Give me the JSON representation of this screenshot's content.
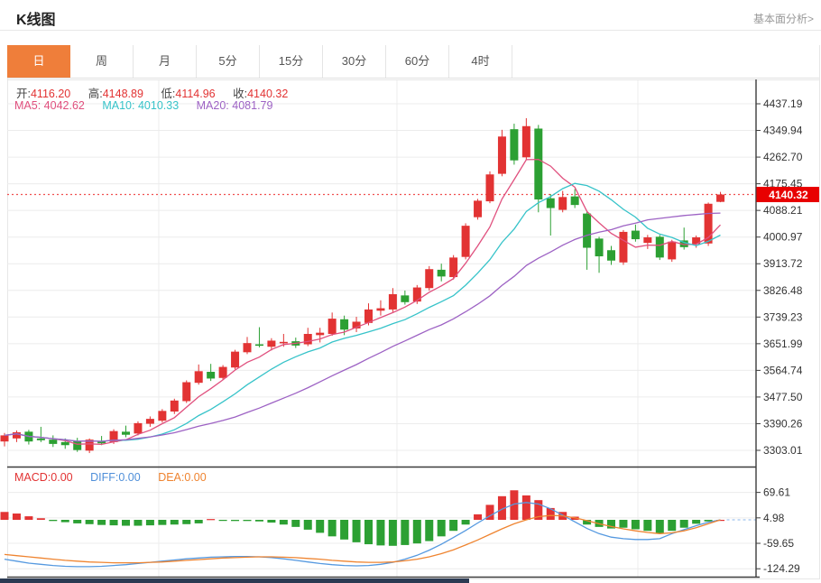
{
  "header": {
    "title": "K线图",
    "link": "基本面分析>"
  },
  "tabs": {
    "items": [
      {
        "label": "日",
        "active": true
      },
      {
        "label": "周",
        "active": false
      },
      {
        "label": "月",
        "active": false
      },
      {
        "label": "5分",
        "active": false
      },
      {
        "label": "15分",
        "active": false
      },
      {
        "label": "30分",
        "active": false
      },
      {
        "label": "60分",
        "active": false
      },
      {
        "label": "4时",
        "active": false
      }
    ]
  },
  "legend": {
    "ohlc": [
      {
        "label": "开:",
        "value": "4116.20"
      },
      {
        "label": "高:",
        "value": "4148.89"
      },
      {
        "label": "低:",
        "value": "4114.96"
      },
      {
        "label": "收:",
        "value": "4140.32"
      }
    ],
    "ma": [
      {
        "label": "MA5:",
        "value": "4042.62"
      },
      {
        "label": "MA10:",
        "value": "4010.33"
      },
      {
        "label": "MA20:",
        "value": "4081.79"
      }
    ],
    "macd": [
      {
        "label": "MACD:",
        "value": "0.00"
      },
      {
        "label": "DIFF:",
        "value": "0.00"
      },
      {
        "label": "DEA:",
        "value": "0.00"
      }
    ]
  },
  "colors": {
    "up": "#e23333",
    "down": "#2ca033",
    "ma5": "#e0507e",
    "ma10": "#36c3c9",
    "ma20": "#9d62c4",
    "diff": "#5599e0",
    "dea": "#ef8430",
    "grid": "#ececec",
    "axis": "#3c3c3c",
    "tick_text": "#333333",
    "price_line": "#f05050",
    "price_tag_bg": "#e80000",
    "price_tag_text": "#ffffff",
    "tab_active_bg": "#ef7e3a"
  },
  "chart_data": {
    "type": "candlestick+macd",
    "title": "K线图 (日)",
    "legend_position": "top-left",
    "grid": true,
    "y_axis_main": [
      "4437.19",
      "4349.94",
      "4262.70",
      "4175.45",
      "4088.21",
      "4000.97",
      "3913.72",
      "3826.48",
      "3739.23",
      "3651.99",
      "3564.74",
      "3477.50",
      "3390.26",
      "3303.01"
    ],
    "current_price": 4140.32,
    "current_price_label": "4140.32",
    "ohlc_legend": {
      "open": 4116.2,
      "high": 4148.89,
      "low": 4114.96,
      "close": 4140.32
    },
    "ma_legend": {
      "MA5": 4042.62,
      "MA10": 4010.33,
      "MA20": 4081.79
    },
    "ma_periods": [
      5,
      10,
      20
    ],
    "candles_ohlc": [
      [
        3332,
        3360,
        3316,
        3352
      ],
      [
        3342,
        3368,
        3330,
        3362
      ],
      [
        3364,
        3370,
        3322,
        3332
      ],
      [
        3342,
        3380,
        3330,
        3336
      ],
      [
        3338,
        3352,
        3314,
        3324
      ],
      [
        3330,
        3342,
        3308,
        3320
      ],
      [
        3334,
        3344,
        3298,
        3304
      ],
      [
        3302,
        3342,
        3294,
        3338
      ],
      [
        3334,
        3350,
        3320,
        3326
      ],
      [
        3330,
        3372,
        3324,
        3366
      ],
      [
        3364,
        3384,
        3346,
        3354
      ],
      [
        3358,
        3398,
        3352,
        3392
      ],
      [
        3390,
        3414,
        3380,
        3406
      ],
      [
        3400,
        3438,
        3394,
        3432
      ],
      [
        3430,
        3472,
        3422,
        3466
      ],
      [
        3464,
        3532,
        3458,
        3526
      ],
      [
        3524,
        3584,
        3518,
        3562
      ],
      [
        3560,
        3586,
        3530,
        3538
      ],
      [
        3540,
        3582,
        3534,
        3576
      ],
      [
        3574,
        3632,
        3568,
        3626
      ],
      [
        3624,
        3674,
        3618,
        3654
      ],
      [
        3650,
        3706,
        3640,
        3646
      ],
      [
        3642,
        3670,
        3630,
        3662
      ],
      [
        3654,
        3684,
        3642,
        3658
      ],
      [
        3660,
        3672,
        3638,
        3646
      ],
      [
        3650,
        3704,
        3644,
        3684
      ],
      [
        3680,
        3704,
        3656,
        3688
      ],
      [
        3684,
        3754,
        3678,
        3734
      ],
      [
        3732,
        3744,
        3680,
        3698
      ],
      [
        3702,
        3740,
        3690,
        3724
      ],
      [
        3720,
        3784,
        3712,
        3764
      ],
      [
        3760,
        3794,
        3744,
        3768
      ],
      [
        3764,
        3834,
        3756,
        3814
      ],
      [
        3810,
        3826,
        3780,
        3788
      ],
      [
        3790,
        3844,
        3782,
        3836
      ],
      [
        3834,
        3906,
        3826,
        3896
      ],
      [
        3894,
        3914,
        3856,
        3872
      ],
      [
        3870,
        3942,
        3862,
        3934
      ],
      [
        3936,
        4046,
        3928,
        4038
      ],
      [
        4066,
        4126,
        4058,
        4120
      ],
      [
        4118,
        4216,
        4112,
        4206
      ],
      [
        4208,
        4352,
        4200,
        4330
      ],
      [
        4354,
        4372,
        4238,
        4252
      ],
      [
        4262,
        4390,
        4254,
        4364
      ],
      [
        4356,
        4368,
        4082,
        4124
      ],
      [
        4128,
        4142,
        4006,
        4096
      ],
      [
        4090,
        4152,
        4082,
        4132
      ],
      [
        4134,
        4158,
        4096,
        4106
      ],
      [
        4078,
        4086,
        3894,
        3966
      ],
      [
        3996,
        4002,
        3884,
        3938
      ],
      [
        3958,
        3972,
        3910,
        3924
      ],
      [
        3918,
        4024,
        3910,
        4018
      ],
      [
        4022,
        4042,
        3986,
        3994
      ],
      [
        3982,
        4008,
        3962,
        4000
      ],
      [
        4002,
        4008,
        3926,
        3934
      ],
      [
        3928,
        3992,
        3920,
        3986
      ],
      [
        3990,
        4032,
        3960,
        3968
      ],
      [
        3978,
        4006,
        3966,
        4000
      ],
      [
        3980,
        4114,
        3972,
        4110
      ],
      [
        4116.2,
        4148.89,
        4114.96,
        4140.32
      ]
    ],
    "macd": {
      "y_axis": [
        "69.61",
        "4.98",
        "-59.65",
        "-124.29"
      ],
      "current": {
        "macd": 0.0,
        "diff": 0.0,
        "dea": 0.0
      },
      "hist": [
        20,
        16,
        9,
        4,
        -3,
        -6,
        -9,
        -11,
        -13,
        -14,
        -15,
        -15,
        -14,
        -13,
        -12,
        -11,
        -9,
        2,
        -2,
        -3,
        -3,
        -4,
        -7,
        -12,
        -18,
        -25,
        -33,
        -42,
        -50,
        -57,
        -62,
        -65,
        -66,
        -64,
        -60,
        -54,
        -42,
        -28,
        -12,
        14,
        38,
        60,
        75,
        62,
        50,
        30,
        20,
        8,
        -12,
        -18,
        -22,
        -20,
        -24,
        -28,
        -35,
        -28,
        -20,
        -10,
        -4,
        0
      ],
      "diff": [
        -100,
        -105,
        -110,
        -113,
        -116,
        -118,
        -119,
        -119,
        -118,
        -116,
        -114,
        -111,
        -108,
        -105,
        -102,
        -99,
        -97,
        -95,
        -94,
        -93,
        -93,
        -94,
        -96,
        -99,
        -103,
        -107,
        -111,
        -114,
        -116,
        -117,
        -116,
        -113,
        -108,
        -100,
        -90,
        -77,
        -62,
        -45,
        -27,
        -8,
        10,
        27,
        40,
        44,
        40,
        28,
        12,
        -5,
        -22,
        -35,
        -44,
        -48,
        -50,
        -50,
        -48,
        -35,
        -25,
        -15,
        -6,
        0
      ],
      "dea": [
        -88,
        -91,
        -94,
        -97,
        -100,
        -103,
        -105,
        -107,
        -108,
        -109,
        -109,
        -109,
        -108,
        -107,
        -105,
        -103,
        -101,
        -99,
        -97,
        -96,
        -95,
        -94,
        -94,
        -95,
        -96,
        -98,
        -100,
        -103,
        -105,
        -107,
        -108,
        -108,
        -107,
        -104,
        -100,
        -94,
        -86,
        -76,
        -64,
        -51,
        -37,
        -23,
        -10,
        0,
        8,
        11,
        10,
        5,
        -2,
        -10,
        -17,
        -23,
        -28,
        -32,
        -35,
        -33,
        -28,
        -20,
        -10,
        0
      ]
    }
  }
}
